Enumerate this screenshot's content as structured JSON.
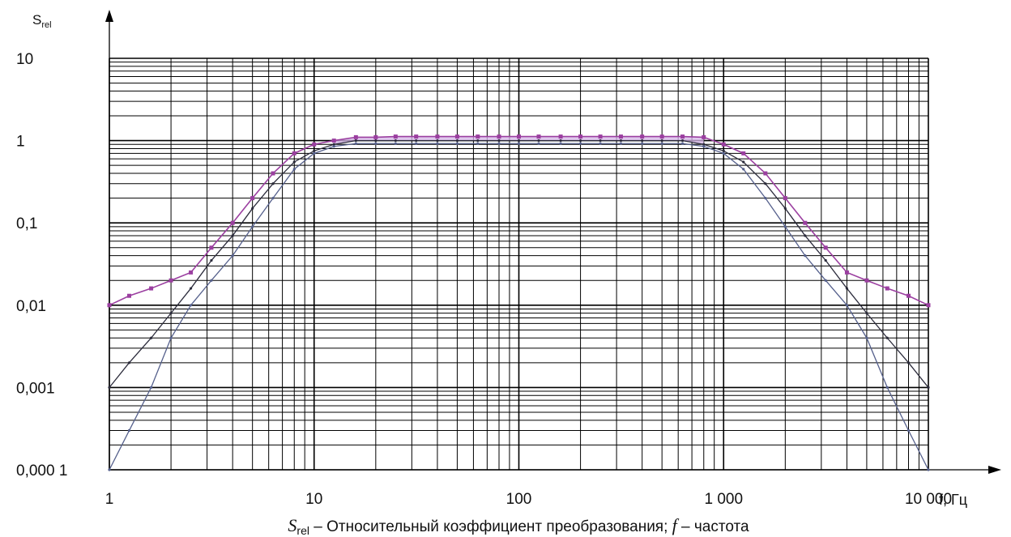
{
  "chart_data": {
    "type": "line",
    "x_scale": "log",
    "y_scale": "log",
    "xlim": [
      1,
      10000
    ],
    "ylim": [
      0.0001,
      10
    ],
    "grid": true,
    "y_axis_label": "S",
    "y_axis_label_sub": "rel",
    "x_axis_label": "f, Гц",
    "x_ticks": [
      "1",
      "10",
      "100",
      "1 000",
      "10 000"
    ],
    "y_ticks": [
      "0,000 1",
      "0,001",
      "0,01",
      "0,1",
      "1",
      "10"
    ],
    "caption": {
      "var1": "S",
      "var1_sub": "rel",
      "text1": " – Относительный коэффициент преобразования; ",
      "var2": "f",
      "text2": " – частота"
    },
    "colors": {
      "upper": "#9b3fa0",
      "upper_fill": "#d6b6e8",
      "middle": "#2b2b3b",
      "lower": "#55608c",
      "grid": "#000000"
    },
    "series": [
      {
        "x": [
          1,
          1.25,
          1.6,
          2,
          2.5,
          3.15,
          4,
          5,
          6.3,
          8,
          10,
          12.5,
          16,
          20,
          25,
          31.5,
          40,
          50,
          63,
          80,
          100,
          125,
          160,
          200,
          250,
          315,
          400,
          500,
          630,
          800,
          1000,
          1250,
          1600,
          2000,
          2500,
          3150,
          4000,
          5000,
          6300,
          8000,
          10000
        ],
        "y": [
          0.01,
          0.013,
          0.016,
          0.02,
          0.025,
          0.05,
          0.1,
          0.2,
          0.4,
          0.7,
          0.9,
          1.0,
          1.1,
          1.1,
          1.12,
          1.12,
          1.12,
          1.12,
          1.12,
          1.12,
          1.12,
          1.12,
          1.12,
          1.12,
          1.12,
          1.12,
          1.12,
          1.12,
          1.12,
          1.1,
          0.9,
          0.7,
          0.4,
          0.2,
          0.1,
          0.05,
          0.025,
          0.02,
          0.016,
          0.013,
          0.01
        ]
      },
      {
        "x": [
          1,
          1.25,
          1.6,
          2,
          2.5,
          3.15,
          4,
          5,
          6.3,
          8,
          10,
          12.5,
          16,
          20,
          25,
          31.5,
          40,
          50,
          63,
          80,
          100,
          125,
          160,
          200,
          250,
          315,
          400,
          500,
          630,
          800,
          1000,
          1250,
          1600,
          2000,
          2500,
          3150,
          4000,
          5000,
          6300,
          8000,
          10000
        ],
        "y": [
          0.001,
          0.002,
          0.004,
          0.008,
          0.016,
          0.035,
          0.07,
          0.15,
          0.3,
          0.55,
          0.75,
          0.9,
          1.0,
          1.0,
          1.0,
          1.0,
          1.0,
          1.0,
          1.0,
          1.0,
          1.0,
          1.0,
          1.0,
          1.0,
          1.0,
          1.0,
          1.0,
          1.0,
          1.0,
          0.9,
          0.75,
          0.55,
          0.3,
          0.15,
          0.07,
          0.035,
          0.016,
          0.008,
          0.004,
          0.002,
          0.001
        ]
      },
      {
        "x": [
          1,
          1.25,
          1.6,
          2,
          2.5,
          3.15,
          4,
          5,
          6.3,
          8,
          10,
          12.5,
          16,
          20,
          25,
          31.5,
          40,
          50,
          63,
          80,
          100,
          125,
          160,
          200,
          250,
          315,
          400,
          500,
          630,
          800,
          1000,
          1250,
          1600,
          2000,
          2500,
          3150,
          4000,
          5000,
          6300,
          8000,
          10000
        ],
        "y": [
          0.0001,
          0.0003,
          0.001,
          0.004,
          0.01,
          0.02,
          0.04,
          0.09,
          0.2,
          0.45,
          0.7,
          0.85,
          0.92,
          0.92,
          0.92,
          0.92,
          0.92,
          0.92,
          0.92,
          0.92,
          0.92,
          0.92,
          0.92,
          0.92,
          0.92,
          0.92,
          0.92,
          0.92,
          0.92,
          0.85,
          0.7,
          0.45,
          0.2,
          0.09,
          0.04,
          0.02,
          0.01,
          0.004,
          0.001,
          0.0003,
          0.0001
        ]
      }
    ]
  }
}
